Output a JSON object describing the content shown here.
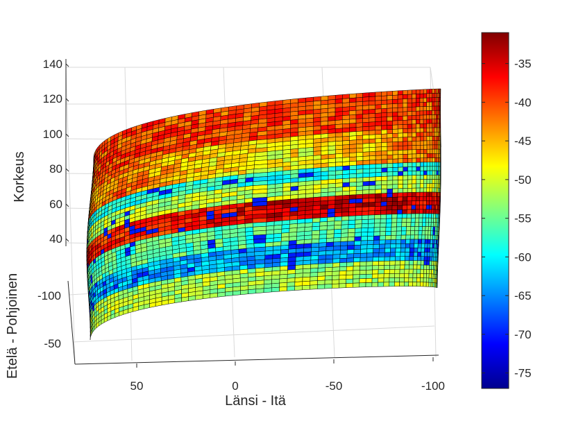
{
  "chart_data": {
    "type": "heatmap",
    "subtype": "3d-surface-spherical-patch",
    "colormap": "jet",
    "grid": true,
    "colorbar": {
      "location": "right",
      "range": [
        -77,
        -31
      ],
      "ticks": [
        "-35",
        "-40",
        "-45",
        "-50",
        "-55",
        "-60",
        "-65",
        "-70",
        "-75"
      ]
    },
    "axes": {
      "x": {
        "label": "Länsi - Itä",
        "ticks": [
          "50",
          "0",
          "-50",
          "-100"
        ]
      },
      "y": {
        "label": "Etelä - Pohjoinen",
        "ticks": [
          "-100",
          "-50"
        ]
      },
      "z": {
        "label": "Korkeus",
        "ticks": [
          "140",
          "120",
          "100",
          "80",
          "60",
          "40"
        ],
        "range": [
          30,
          140
        ]
      }
    },
    "surface_bands": [
      {
        "region": "top cap (elevation 105-140)",
        "value": -40
      },
      {
        "region": "elevation 85-105",
        "value": -45
      },
      {
        "region": "elevation 75-85",
        "value": -60
      },
      {
        "region": "elevation 65-75",
        "value": -50
      },
      {
        "region": "elevation 50-65",
        "value": -36
      },
      {
        "region": "elevation 40-50",
        "value": -55
      },
      {
        "region": "elevation 30-40",
        "value": -62
      },
      {
        "region": "lower edge (below 30)",
        "value": -50
      }
    ]
  }
}
